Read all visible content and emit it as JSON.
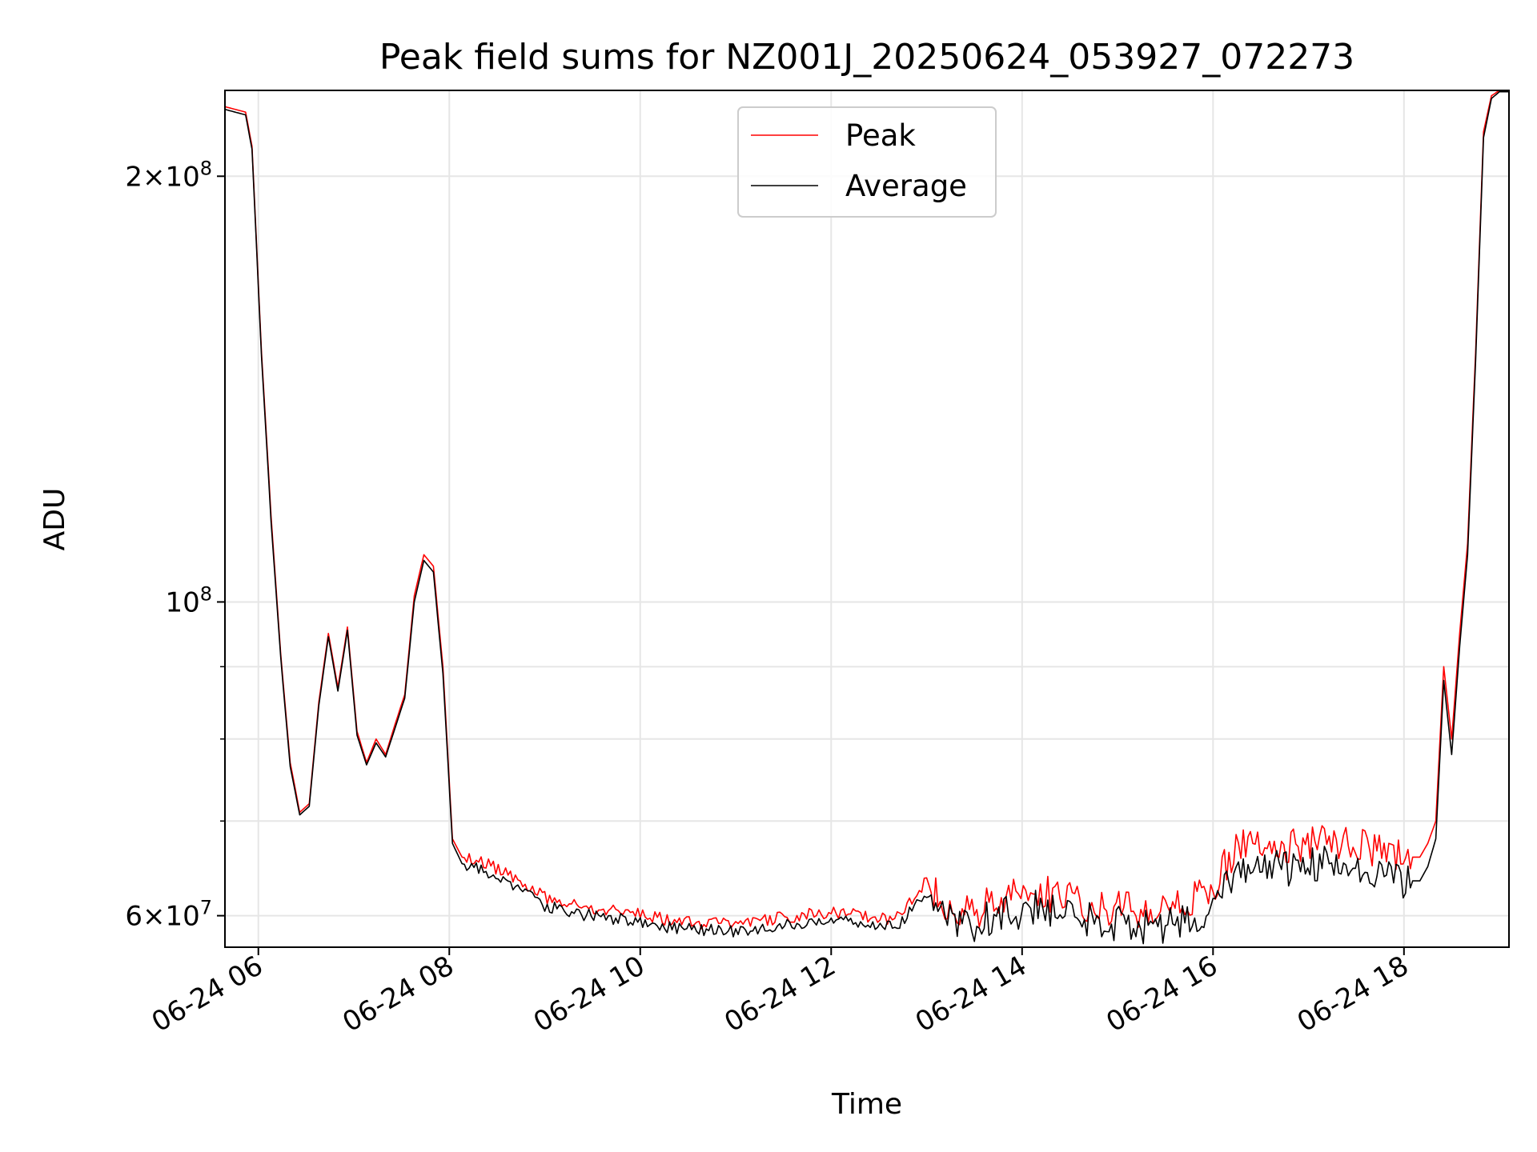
{
  "chart_data": {
    "type": "line",
    "title": "Peak field sums for NZ001J_20250624_053927_072273",
    "xlabel": "Time",
    "ylabel": "ADU",
    "yscale": "log",
    "xlim": [
      "06-24 05:39",
      "06-24 19:06"
    ],
    "ylim": [
      57000000,
      230000000
    ],
    "grid": true,
    "legend_position": "top-center",
    "x_tick_labels": [
      "06-24 06",
      "06-24 08",
      "06-24 10",
      "06-24 12",
      "06-24 14",
      "06-24 16",
      "06-24 18"
    ],
    "y_tick_labels": [
      {
        "value": 60000000,
        "base": "6",
        "exponent": "7"
      },
      {
        "value": 100000000,
        "base": "",
        "exponent": "8"
      },
      {
        "value": 200000000,
        "base": "2",
        "exponent": "8"
      }
    ],
    "series": [
      {
        "name": "Peak",
        "color": "#ff0000",
        "x": [
          "06-24 05:39",
          "06-24 05:52",
          "06-24 05:56",
          "06-24 06:02",
          "06-24 06:08",
          "06-24 06:14",
          "06-24 06:20",
          "06-24 06:26",
          "06-24 06:32",
          "06-24 06:38",
          "06-24 06:44",
          "06-24 06:50",
          "06-24 06:56",
          "06-24 07:02",
          "06-24 07:08",
          "06-24 07:14",
          "06-24 07:20",
          "06-24 07:26",
          "06-24 07:32",
          "06-24 07:38",
          "06-24 07:44",
          "06-24 07:50",
          "06-24 07:56",
          "06-24 08:02",
          "06-24 08:08",
          "06-24 08:20",
          "06-24 08:40",
          "06-24 09:00",
          "06-24 09:20",
          "06-24 09:40",
          "06-24 10:00",
          "06-24 10:20",
          "06-24 10:40",
          "06-24 11:00",
          "06-24 11:20",
          "06-24 11:40",
          "06-24 12:00",
          "06-24 12:20",
          "06-24 12:40",
          "06-24 13:00",
          "06-24 13:10",
          "06-24 13:30",
          "06-24 13:50",
          "06-24 14:10",
          "06-24 14:30",
          "06-24 14:50",
          "06-24 15:10",
          "06-24 15:30",
          "06-24 15:50",
          "06-24 16:00",
          "06-24 16:10",
          "06-24 16:25",
          "06-24 16:40",
          "06-24 16:55",
          "06-24 17:10",
          "06-24 17:25",
          "06-24 17:40",
          "06-24 17:55",
          "06-24 18:10",
          "06-24 18:15",
          "06-24 18:20",
          "06-24 18:25",
          "06-24 18:30",
          "06-24 18:35",
          "06-24 18:40",
          "06-24 18:45",
          "06-24 18:50",
          "06-24 18:55",
          "06-24 19:00",
          "06-24 19:06"
        ],
        "y": [
          224000000,
          222000000,
          210000000,
          150000000,
          115000000,
          92000000,
          77000000,
          71000000,
          72000000,
          85000000,
          95000000,
          87000000,
          96000000,
          81000000,
          77000000,
          80000000,
          78000000,
          82000000,
          86000000,
          101000000,
          108000000,
          106000000,
          90000000,
          68000000,
          66000000,
          65500000,
          64000000,
          61800000,
          61000000,
          60600000,
          60200000,
          59500000,
          59300000,
          59200000,
          59600000,
          60000000,
          60400000,
          60000000,
          59500000,
          63500000,
          61000000,
          60500000,
          61800000,
          62500000,
          61500000,
          61000000,
          60500000,
          60200000,
          62000000,
          63000000,
          66000000,
          68000000,
          67500000,
          67200000,
          68000000,
          67500000,
          67000000,
          66000000,
          66000000,
          67500000,
          70000000,
          90000000,
          80000000,
          95000000,
          110000000,
          150000000,
          215000000,
          228000000,
          230000000,
          230000000
        ]
      },
      {
        "name": "Average",
        "color": "#000000",
        "x": [
          "06-24 05:39",
          "06-24 05:52",
          "06-24 05:56",
          "06-24 06:02",
          "06-24 06:08",
          "06-24 06:14",
          "06-24 06:20",
          "06-24 06:26",
          "06-24 06:32",
          "06-24 06:38",
          "06-24 06:44",
          "06-24 06:50",
          "06-24 06:56",
          "06-24 07:02",
          "06-24 07:08",
          "06-24 07:14",
          "06-24 07:20",
          "06-24 07:26",
          "06-24 07:32",
          "06-24 07:38",
          "06-24 07:44",
          "06-24 07:50",
          "06-24 07:56",
          "06-24 08:02",
          "06-24 08:08",
          "06-24 08:20",
          "06-24 08:40",
          "06-24 09:00",
          "06-24 09:20",
          "06-24 09:40",
          "06-24 10:00",
          "06-24 10:20",
          "06-24 10:40",
          "06-24 11:00",
          "06-24 11:20",
          "06-24 11:40",
          "06-24 12:00",
          "06-24 12:20",
          "06-24 12:40",
          "06-24 13:00",
          "06-24 13:10",
          "06-24 13:30",
          "06-24 13:50",
          "06-24 14:10",
          "06-24 14:30",
          "06-24 14:50",
          "06-24 15:10",
          "06-24 15:30",
          "06-24 15:50",
          "06-24 16:00",
          "06-24 16:10",
          "06-24 16:25",
          "06-24 16:40",
          "06-24 16:55",
          "06-24 17:10",
          "06-24 17:25",
          "06-24 17:40",
          "06-24 17:55",
          "06-24 18:10",
          "06-24 18:15",
          "06-24 18:20",
          "06-24 18:25",
          "06-24 18:30",
          "06-24 18:35",
          "06-24 18:40",
          "06-24 18:45",
          "06-24 18:50",
          "06-24 18:55",
          "06-24 19:00",
          "06-24 19:06"
        ],
        "y": [
          223000000,
          221000000,
          209000000,
          149000000,
          114000000,
          91500000,
          76500000,
          70700000,
          71700000,
          84500000,
          94500000,
          86500000,
          95500000,
          80500000,
          76700000,
          79500000,
          77700000,
          81500000,
          85500000,
          100000000,
          107000000,
          105000000,
          89000000,
          67500000,
          65300000,
          64800000,
          63200000,
          61000000,
          60200000,
          59800000,
          59400000,
          58800000,
          58600000,
          58500000,
          58900000,
          59300000,
          59700000,
          59300000,
          58800000,
          62000000,
          59800000,
          59200000,
          60200000,
          60800000,
          60000000,
          59500000,
          59000000,
          58800000,
          60200000,
          61000000,
          63500000,
          65500000,
          65000000,
          64800000,
          65500000,
          65000000,
          64500000,
          63500000,
          63500000,
          65000000,
          68000000,
          88000000,
          78000000,
          93000000,
          108000000,
          148000000,
          213000000,
          227000000,
          229500000,
          229500000
        ]
      }
    ]
  }
}
